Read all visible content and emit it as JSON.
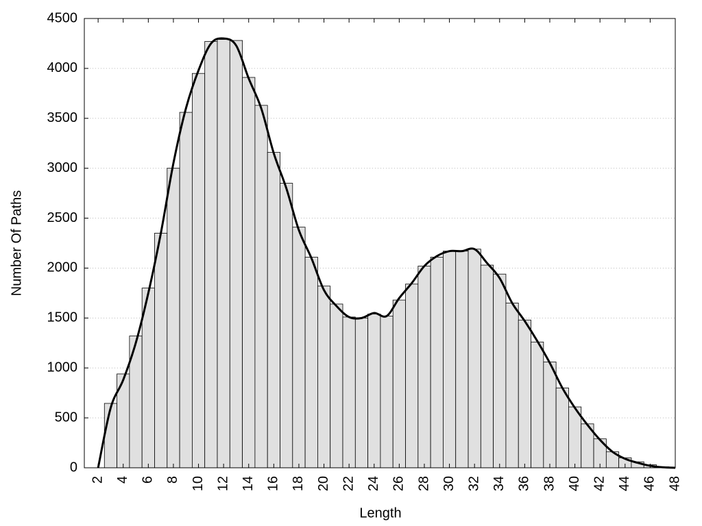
{
  "chart_data": {
    "type": "histogram",
    "x_label": "Length",
    "y_label": "Number Of Paths",
    "bins": [
      2.5,
      3.5,
      4.5,
      5.5,
      6.5,
      7.5,
      8.5,
      9.5,
      10.5,
      11.5,
      12.5,
      13.5,
      14.5,
      15.5,
      16.5,
      17.5,
      18.5,
      19.5,
      20.5,
      21.5,
      22.5,
      23.5,
      24.5,
      25.5,
      26.5,
      27.5,
      28.5,
      29.5,
      30.5,
      31.5,
      32.5,
      33.5,
      34.5,
      35.5,
      36.5,
      37.5,
      38.5,
      39.5,
      40.5,
      41.5,
      42.5,
      43.5,
      44.5,
      45.5,
      46.5,
      47.5
    ],
    "values": [
      645,
      940,
      1320,
      1800,
      2350,
      3000,
      3560,
      3950,
      4270,
      4290,
      4280,
      3910,
      3630,
      3160,
      2850,
      2410,
      2110,
      1820,
      1640,
      1510,
      1500,
      1540,
      1520,
      1680,
      1840,
      2020,
      2110,
      2170,
      2170,
      2190,
      2030,
      1940,
      1650,
      1480,
      1260,
      1060,
      800,
      610,
      440,
      290,
      160,
      100,
      60,
      30,
      10
    ],
    "color": "#e0e0e0",
    "curve": {
      "color": "#000000",
      "x": [
        2,
        3,
        4,
        5,
        6,
        7,
        8,
        9,
        10,
        11,
        12,
        13,
        14,
        15,
        16,
        17,
        18,
        19,
        20,
        21,
        22,
        23,
        24,
        25,
        26,
        27,
        28,
        29,
        30,
        31,
        32,
        33,
        34,
        35,
        36,
        37,
        38,
        39,
        40,
        41,
        42,
        43,
        44,
        45,
        46,
        47,
        48
      ],
      "values": [
        0,
        600,
        880,
        1250,
        1750,
        2350,
        3050,
        3600,
        3980,
        4250,
        4300,
        4230,
        3900,
        3600,
        3150,
        2800,
        2380,
        2100,
        1780,
        1620,
        1510,
        1500,
        1550,
        1520,
        1700,
        1850,
        2020,
        2120,
        2170,
        2170,
        2190,
        2050,
        1900,
        1650,
        1470,
        1270,
        1050,
        800,
        600,
        430,
        280,
        160,
        90,
        50,
        20,
        5,
        0
      ]
    },
    "xlim": [
      0.9,
      48
    ],
    "ylim": [
      0,
      4500
    ],
    "xticks": [
      2,
      4,
      6,
      8,
      10,
      12,
      14,
      16,
      18,
      20,
      22,
      24,
      26,
      28,
      30,
      32,
      34,
      36,
      38,
      40,
      42,
      44,
      46,
      48
    ],
    "yticks": [
      0,
      500,
      1000,
      1500,
      2000,
      2500,
      3000,
      3500,
      4000,
      4500
    ],
    "grid": true
  }
}
